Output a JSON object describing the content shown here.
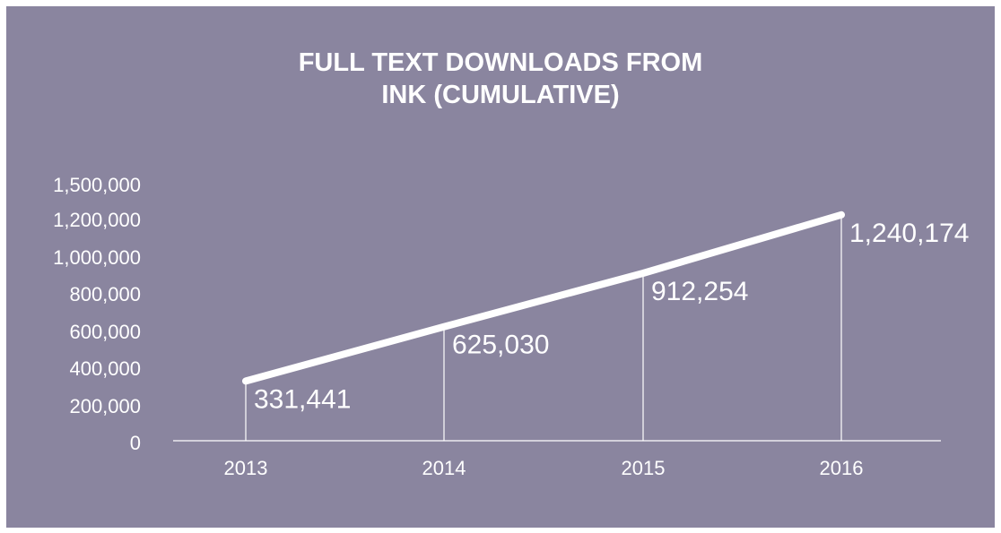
{
  "colors": {
    "background": "#8a859f",
    "line": "#ffffff",
    "text": "#ffffff"
  },
  "chart_data": {
    "type": "line",
    "title": [
      "FULL TEXT DOWNLOADS FROM",
      "INK (CUMULATIVE)"
    ],
    "xlabel": "",
    "ylabel": "",
    "categories": [
      "2013",
      "2014",
      "2015",
      "2016"
    ],
    "series": [
      {
        "values": [
          331441,
          625030,
          912254,
          1240174
        ],
        "data_labels": [
          "331,441",
          "625,030",
          "912,254",
          "1,240,174"
        ]
      }
    ],
    "y_tick_values": [
      0,
      200000,
      400000,
      600000,
      800000,
      1000000,
      1200000,
      1500000
    ],
    "y_tick_labels": [
      "0",
      "200,000",
      "400,000",
      "600,000",
      "800,000",
      "1,000,000",
      "1,200,000",
      "1,500,000"
    ],
    "ylim": [
      0,
      1500000
    ],
    "grid": false,
    "legend": "none",
    "drop_lines": true
  }
}
